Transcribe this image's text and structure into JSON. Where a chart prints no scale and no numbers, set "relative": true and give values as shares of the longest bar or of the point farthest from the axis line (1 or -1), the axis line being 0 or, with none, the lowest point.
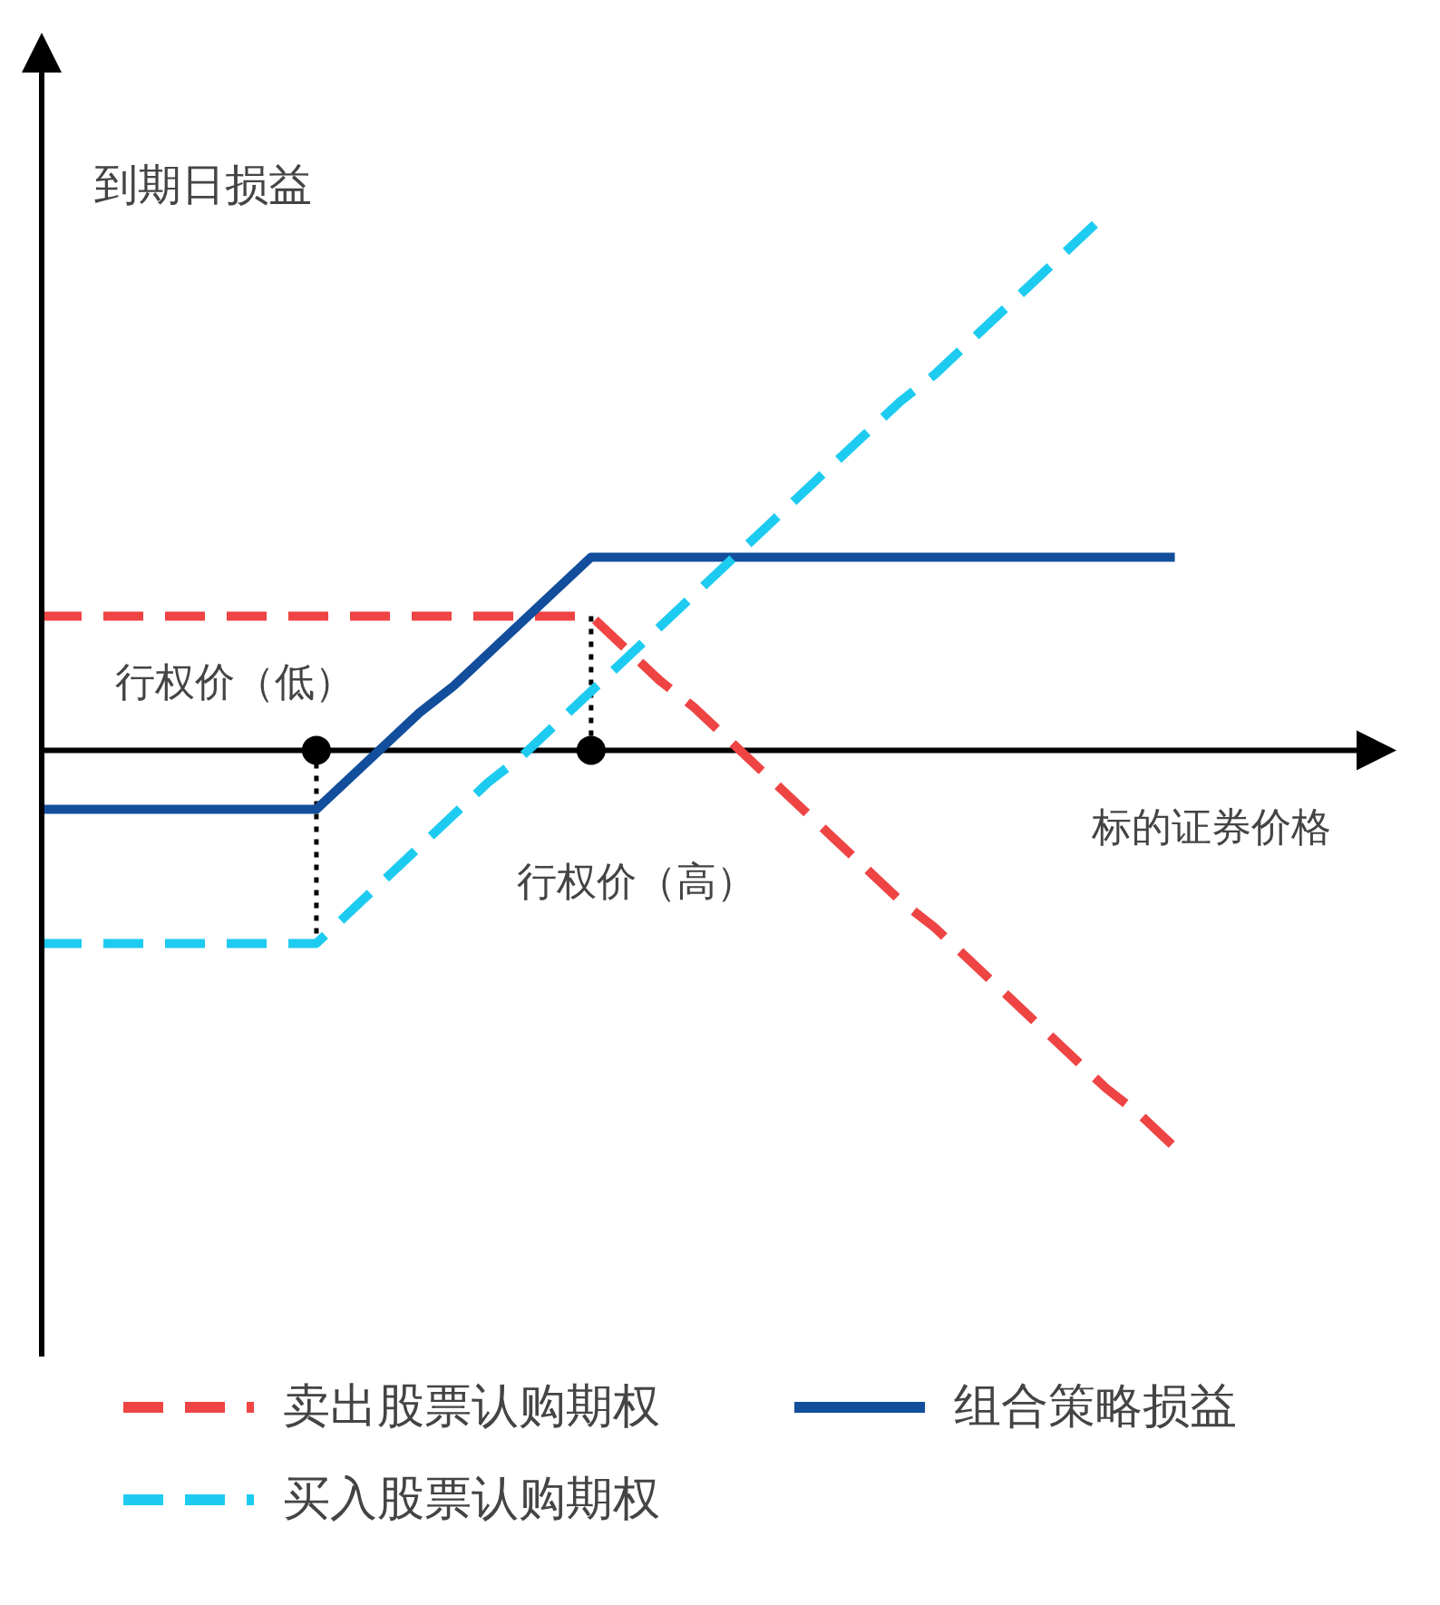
{
  "chart_data": {
    "type": "line",
    "relative": true,
    "ylabel": "到期日损益",
    "xlabel": "标的证券价格",
    "legend": "bottom",
    "marker": "none",
    "categories": [
      null,
      null,
      null,
      null,
      null,
      null,
      null,
      null,
      null,
      null,
      null,
      null,
      null,
      null,
      null,
      null,
      null,
      null,
      null,
      null,
      null,
      null,
      null,
      null,
      null,
      null,
      null,
      null,
      null,
      null,
      null,
      null,
      null,
      null
    ],
    "annotations": [
      "行权价（低）",
      "行权价（高）"
    ],
    "series": [
      {
        "name": "卖出股票认购期权",
        "color": "#ef4444",
        "line_style": "dashed",
        "values": [
          0.25,
          0.25,
          0.25,
          0.25,
          0.25,
          0.25,
          0.25,
          0.25,
          0.25,
          0.25,
          0.25,
          0.25,
          0.25,
          0.25,
          0.25,
          0.25,
          0.25,
          0.19,
          0.13,
          0.08,
          0.02,
          -0.04,
          -0.1,
          -0.16,
          -0.22,
          -0.28,
          -0.33,
          -0.39,
          -0.45,
          -0.51,
          -0.57,
          -0.63,
          -0.68,
          -0.74
        ]
      },
      {
        "name": "组合策略损益",
        "color": "#124e9c",
        "line_style": "solid",
        "values": [
          -0.11,
          -0.11,
          -0.11,
          -0.11,
          -0.11,
          -0.11,
          -0.11,
          -0.11,
          -0.11,
          -0.05,
          0.01,
          0.07,
          0.12,
          0.18,
          0.24,
          0.3,
          0.36,
          0.36,
          0.36,
          0.36,
          0.36,
          0.36,
          0.36,
          0.36,
          0.36,
          0.36,
          0.36,
          0.36,
          0.36,
          0.36,
          0.36,
          0.36,
          0.36,
          0.36
        ]
      },
      {
        "name": "买入股票认购期权",
        "color": "#1ecbf0",
        "line_style": "dashed",
        "values": [
          -0.36,
          -0.36,
          -0.36,
          -0.36,
          -0.36,
          -0.36,
          -0.36,
          -0.36,
          -0.36,
          -0.3,
          -0.24,
          -0.18,
          -0.12,
          -0.06,
          -0.01,
          0.05,
          0.11,
          0.17,
          0.23,
          0.29,
          0.35,
          0.41,
          0.47,
          0.53,
          0.59,
          0.65,
          0.7,
          0.76,
          0.82,
          0.88,
          0.94,
          1.0,
          null,
          null
        ]
      }
    ]
  }
}
